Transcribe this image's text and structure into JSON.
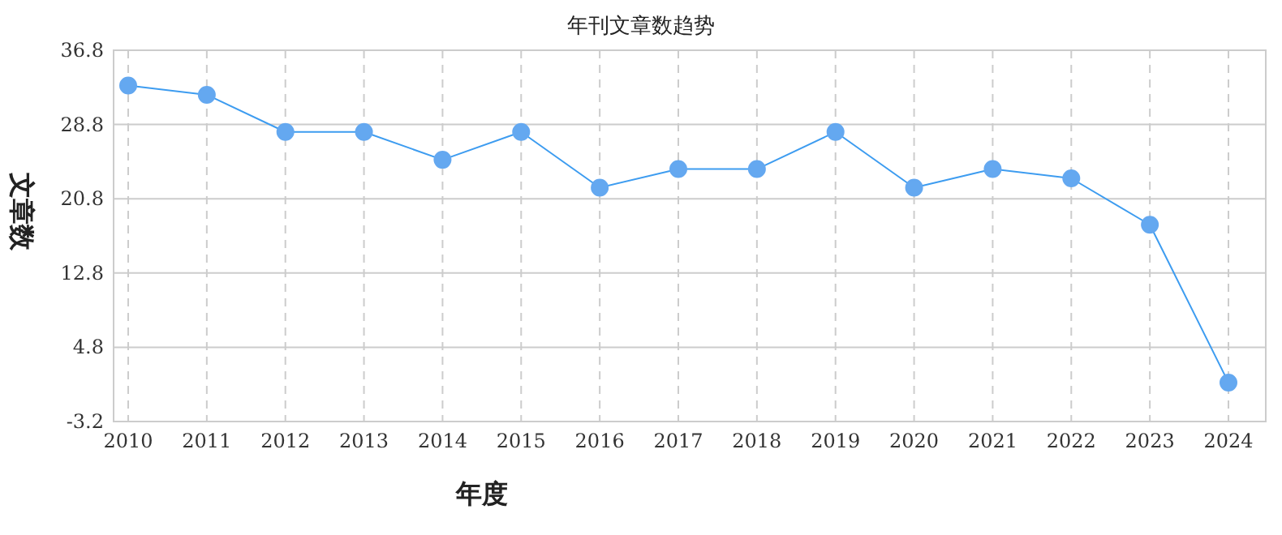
{
  "chart_data": {
    "type": "line",
    "title": "年刊文章数趋势",
    "xlabel": "年度",
    "ylabel": "文章数",
    "categories": [
      "2010",
      "2011",
      "2012",
      "2013",
      "2014",
      "2015",
      "2016",
      "2017",
      "2018",
      "2019",
      "2020",
      "2021",
      "2022",
      "2023",
      "2024"
    ],
    "series": [
      {
        "color": "#3d9cf0",
        "values": [
          33,
          32,
          28,
          28,
          25,
          28,
          22,
          24,
          24,
          28,
          22,
          24,
          23,
          18,
          1
        ]
      }
    ],
    "ylim": [
      -3.2,
      36.8
    ],
    "yticks": [
      -3.2,
      4.8,
      12.8,
      20.8,
      28.8,
      36.8
    ],
    "grid": true,
    "marker": "circle",
    "line_style": "solid"
  }
}
